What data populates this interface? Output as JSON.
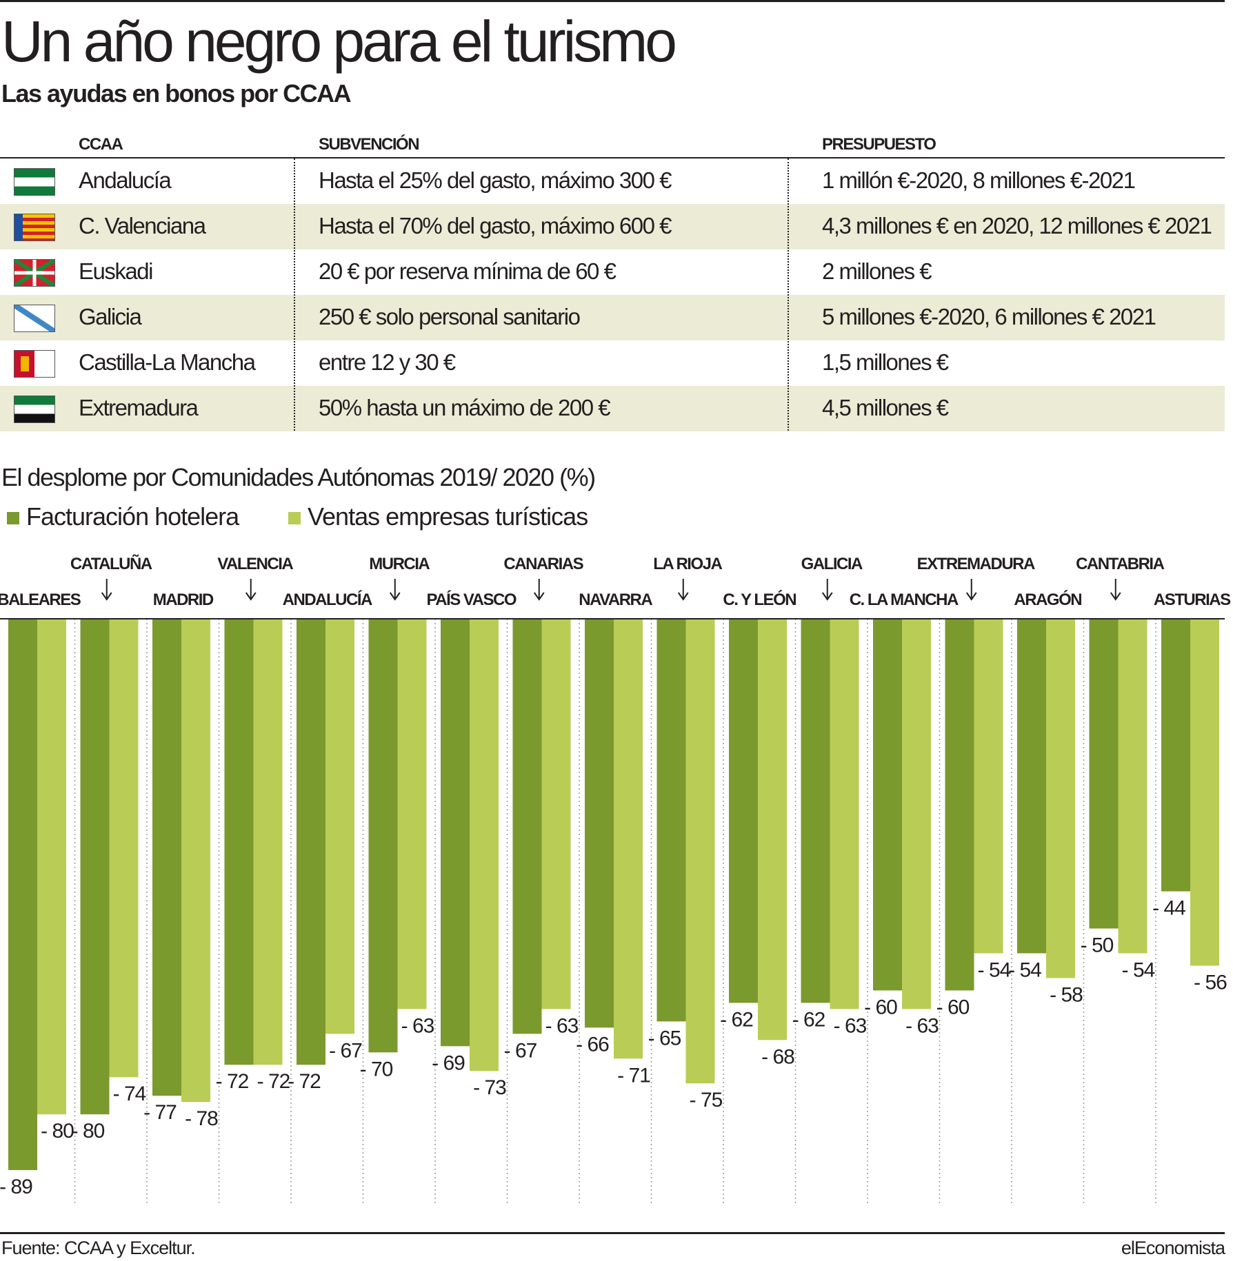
{
  "header": {
    "title": "Un año negro para el turismo",
    "subtitle": "Las ayudas en bonos por CCAA"
  },
  "table": {
    "columns": [
      "CCAA",
      "SUBVENCIÓN",
      "PRESUPUESTO"
    ],
    "rows": [
      {
        "ccaa": "Andalucía",
        "subvencion": "Hasta el 25% del gasto, máximo 300 €",
        "presupuesto": "1 millón €-2020, 8 millones €-2021",
        "flag": "andalucia-flag"
      },
      {
        "ccaa": "C. Valenciana",
        "subvencion": "Hasta el 70% del gasto, máximo 600 €",
        "presupuesto": "4,3 millones € en 2020, 12 millones € 2021",
        "flag": "valencia-flag"
      },
      {
        "ccaa": "Euskadi",
        "subvencion": "20 € por reserva mínima de 60 €",
        "presupuesto": "2 millones €",
        "flag": "euskadi-flag"
      },
      {
        "ccaa": "Galicia",
        "subvencion": "250 € solo personal sanitario",
        "presupuesto": "5 millones €-2020, 6 millones € 2021",
        "flag": "galicia-flag"
      },
      {
        "ccaa": "Castilla-La Mancha",
        "subvencion": "entre 12 y 30 €",
        "presupuesto": "1,5 millones €",
        "flag": "castilla-la-mancha-flag"
      },
      {
        "ccaa": "Extremadura",
        "subvencion": "50% hasta un máximo de 200 €",
        "presupuesto": "4,5 millones €",
        "flag": "extremadura-flag"
      }
    ]
  },
  "chart_data": {
    "type": "bar",
    "title": "El desplome por Comunidades Autónomas 2019/ 2020 (%)",
    "legend_position": "top-left",
    "grid": false,
    "ylim": [
      -95,
      0
    ],
    "categories": [
      "BALEARES",
      "CATALUÑA",
      "MADRID",
      "VALENCIA",
      "ANDALUCÍA",
      "MURCIA",
      "PAÍS VASCO",
      "CANARIAS",
      "NAVARRA",
      "LA RIOJA",
      "C. Y LEÓN",
      "GALICIA",
      "C. LA MANCHA",
      "EXTREMADURA",
      "ARAGÓN",
      "CANTABRIA",
      "ASTURIAS"
    ],
    "series": [
      {
        "name": "Facturación hotelera",
        "color": "#7a9a2e",
        "values": [
          -89,
          -80,
          -77,
          -72,
          -72,
          -70,
          -69,
          -67,
          -66,
          -65,
          -62,
          -62,
          -60,
          -60,
          -54,
          -50,
          -44
        ]
      },
      {
        "name": "Ventas empresas turísticas",
        "color": "#b9cc55",
        "values": [
          -80,
          -74,
          -78,
          -72,
          -67,
          -63,
          -73,
          -63,
          -71,
          -75,
          -68,
          -63,
          -63,
          -54,
          -58,
          -54,
          -56
        ]
      }
    ],
    "value_labels": [
      [
        "- 89",
        "- 80"
      ],
      [
        "- 80",
        "- 74"
      ],
      [
        "- 77",
        "- 78"
      ],
      [
        "- 72",
        "- 72"
      ],
      [
        "- 72",
        "- 67"
      ],
      [
        "- 70",
        "- 63"
      ],
      [
        "- 69",
        "- 73"
      ],
      [
        "- 67",
        "- 63"
      ],
      [
        "- 66",
        "- 71"
      ],
      [
        "- 65",
        "- 75"
      ],
      [
        "- 62",
        "- 68"
      ],
      [
        "- 62",
        "- 63"
      ],
      [
        "- 60",
        "- 63"
      ],
      [
        "- 60",
        "- 54"
      ],
      [
        "- 54",
        "- 58"
      ],
      [
        "- 50",
        "- 54"
      ],
      [
        "- 44",
        "- 56"
      ]
    ]
  },
  "footer": {
    "source": "Fuente: CCAA y Exceltur.",
    "brand": "elEconomista"
  }
}
